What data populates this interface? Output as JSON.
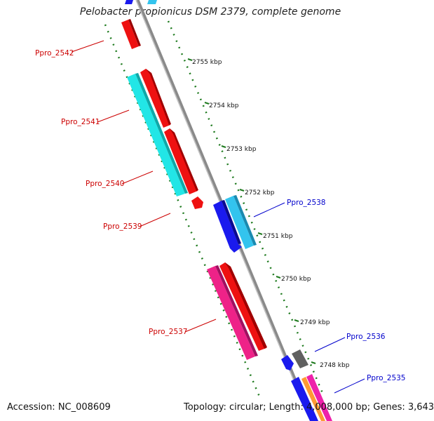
{
  "title": "Pelobacter propionicus DSM 2379, complete genome",
  "footer": {
    "accession": "Accession: NC_008609",
    "summary": "Topology: circular; Length: 4,008,000 bp; Genes: 3,643"
  },
  "ticks": [
    "2755 kbp",
    "2754 kbp",
    "2753 kbp",
    "2752 kbp",
    "2751 kbp",
    "2750 kbp",
    "2749 kbp",
    "2748 kbp"
  ],
  "genes_left": [
    "Ppro_2542",
    "Ppro_2541",
    "Ppro_2540",
    "Ppro_2539",
    "Ppro_2537"
  ],
  "genes_right": [
    "Ppro_2538",
    "Ppro_2536",
    "Ppro_2535"
  ],
  "colors": {
    "backbone": "#8a8a8a",
    "dots": "#1e7a1e",
    "label_left": "#cc0000",
    "label_right": "#0000cc",
    "red": "#ee1111",
    "cyan": "#22e6e6",
    "lightblue": "#33c4ee",
    "blue": "#1a1aee",
    "pink": "#ee2288",
    "gray": "#606060",
    "orange": "#ff9933",
    "magenta": "#ee22aa"
  }
}
